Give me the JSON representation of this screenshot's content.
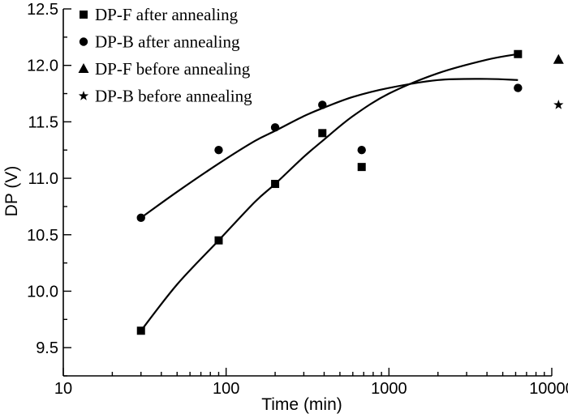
{
  "chart_data": {
    "type": "scatter",
    "xscale": "log",
    "xlim": [
      10,
      10000
    ],
    "ylim": [
      9.25,
      12.5
    ],
    "xlabel": "Time (min)",
    "ylabel": "DP (V)",
    "xticks": [
      10,
      100,
      1000,
      10000
    ],
    "xtick_labels": [
      "10",
      "100",
      "1000",
      "10000"
    ],
    "yticks": [
      9.5,
      10.0,
      10.5,
      11.0,
      11.5,
      12.0,
      12.5
    ],
    "ytick_labels": [
      "9.5",
      "10.0",
      "10.5",
      "11.0",
      "11.5",
      "12.0",
      "12.5"
    ],
    "legend_position": "top-left",
    "series": [
      {
        "name": "DP-F after annealing",
        "marker": "square",
        "x": [
          30,
          90,
          200,
          390,
          680,
          6200
        ],
        "y": [
          9.65,
          10.45,
          10.95,
          11.4,
          11.1,
          12.1
        ]
      },
      {
        "name": "DP-B after annealing",
        "marker": "circle",
        "x": [
          30,
          90,
          200,
          390,
          680,
          6200
        ],
        "y": [
          10.65,
          11.25,
          11.45,
          11.65,
          11.25,
          11.8
        ]
      },
      {
        "name": "DP-F before annealing",
        "marker": "triangle",
        "x": [
          11000
        ],
        "y": [
          12.05
        ]
      },
      {
        "name": "DP-B before annealing",
        "marker": "star",
        "x": [
          11000
        ],
        "y": [
          11.65
        ]
      }
    ],
    "fit_curves": [
      {
        "for_series": "DP-F after annealing",
        "x": [
          30,
          50,
          90,
          150,
          200,
          300,
          390,
          600,
          1000,
          2000,
          4000,
          6200
        ],
        "y": [
          9.65,
          10.06,
          10.45,
          10.79,
          10.95,
          11.19,
          11.33,
          11.55,
          11.75,
          11.93,
          12.05,
          12.1
        ]
      },
      {
        "for_series": "DP-B after annealing",
        "x": [
          30,
          50,
          90,
          150,
          200,
          300,
          390,
          600,
          1000,
          2000,
          4000,
          6200
        ],
        "y": [
          10.65,
          10.88,
          11.13,
          11.33,
          11.42,
          11.55,
          11.62,
          11.72,
          11.8,
          11.87,
          11.88,
          11.87
        ]
      }
    ]
  }
}
